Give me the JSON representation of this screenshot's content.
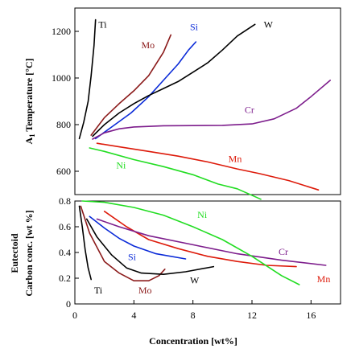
{
  "chart_data": [
    {
      "type": "line",
      "ylabel_main": "A",
      "ylabel_sub": "1",
      "ylabel_rest": " Temperature [°C]",
      "xlim": [
        0,
        18
      ],
      "ylim": [
        500,
        1300
      ],
      "yticks": [
        "600",
        "800",
        "1000",
        "1200"
      ],
      "series": [
        {
          "name": "Ti",
          "color": "#000000",
          "style": "solid",
          "x": [
            0.3,
            0.6,
            0.9,
            1.1,
            1.3,
            1.4
          ],
          "y": [
            740,
            810,
            900,
            1010,
            1140,
            1250
          ]
        },
        {
          "name": "Mo",
          "color": "#8b1a1a",
          "style": "solid",
          "x": [
            1.1,
            2,
            3,
            4,
            5,
            6,
            6.5
          ],
          "y": [
            755,
            830,
            890,
            945,
            1010,
            1110,
            1185
          ]
        },
        {
          "name": "Si",
          "color": "#0a2ad8",
          "style": "solid",
          "x": [
            1.4,
            2.5,
            3.8,
            5,
            6,
            7,
            7.7,
            8.2
          ],
          "y": [
            740,
            790,
            850,
            920,
            990,
            1060,
            1120,
            1155
          ]
        },
        {
          "name": "W",
          "color": "#000000",
          "style": "solid",
          "x": [
            1.2,
            2,
            3,
            4,
            5,
            6,
            7,
            8,
            9,
            10,
            11,
            12.2
          ],
          "y": [
            750,
            800,
            850,
            890,
            925,
            955,
            985,
            1025,
            1065,
            1120,
            1180,
            1230
          ]
        },
        {
          "name": "Cr",
          "color": "#7d1d8c",
          "style": "solid",
          "x": [
            1.2,
            2,
            3,
            4,
            6,
            8,
            10,
            12,
            13.5,
            15,
            16,
            17.3
          ],
          "y": [
            738,
            765,
            782,
            790,
            795,
            796,
            797,
            803,
            825,
            870,
            920,
            990
          ]
        },
        {
          "name": "Mn",
          "color": "#dd1a0a",
          "style": "solid",
          "x": [
            1.5,
            3,
            5,
            7,
            9,
            11,
            12.5,
            14.5,
            16.5
          ],
          "y": [
            720,
            705,
            685,
            665,
            640,
            610,
            590,
            560,
            520
          ]
        },
        {
          "name": "Ni",
          "color": "#22dd22",
          "style": "solid",
          "x": [
            1,
            2,
            4,
            6,
            8,
            9.7,
            11,
            12.6
          ],
          "y": [
            700,
            685,
            650,
            620,
            585,
            545,
            525,
            480
          ]
        }
      ],
      "labels": [
        {
          "text": "Ti",
          "x": 1.6,
          "y": 1215,
          "color": "#000000"
        },
        {
          "text": "Mo",
          "x": 4.5,
          "y": 1128,
          "color": "#8b1a1a"
        },
        {
          "text": "Si",
          "x": 7.8,
          "y": 1205,
          "color": "#0a2ad8"
        },
        {
          "text": "W",
          "x": 12.8,
          "y": 1215,
          "color": "#000000"
        },
        {
          "text": "Cr",
          "x": 11.5,
          "y": 850,
          "color": "#7d1d8c"
        },
        {
          "text": "Mn",
          "x": 10.4,
          "y": 640,
          "color": "#dd1a0a"
        },
        {
          "text": "Ni",
          "x": 2.8,
          "y": 612,
          "color": "#22dd22"
        }
      ]
    },
    {
      "type": "line",
      "ylabel_line1": "Eutectoid",
      "ylabel_line2": "Carbon conc. [wt %]",
      "xlabel": "Concentration [wt%]",
      "xlim": [
        0,
        18
      ],
      "ylim": [
        0,
        0.8
      ],
      "yticks": [
        "0",
        "0.2",
        "0.4",
        "0.6",
        "0.8"
      ],
      "xticks": [
        "0",
        "4",
        "8",
        "12",
        "16"
      ],
      "series": [
        {
          "name": "Ti",
          "color": "#000000",
          "style": "solid",
          "x": [
            0.3,
            0.5,
            0.7,
            0.9,
            1.1
          ],
          "y": [
            0.76,
            0.6,
            0.42,
            0.28,
            0.19
          ]
        },
        {
          "name": "Mo",
          "color": "#8b1a1a",
          "style": "solid",
          "x": [
            0.4,
            1,
            2,
            3,
            4,
            5,
            5.7,
            6.1
          ],
          "y": [
            0.76,
            0.55,
            0.33,
            0.24,
            0.18,
            0.18,
            0.22,
            0.27
          ]
        },
        {
          "name": "W",
          "color": "#000000",
          "style": "solid",
          "x": [
            0.8,
            1.5,
            2.5,
            3.5,
            4.5,
            6,
            7.5,
            9.4
          ],
          "y": [
            0.66,
            0.52,
            0.38,
            0.28,
            0.24,
            0.23,
            0.25,
            0.29
          ]
        },
        {
          "name": "Si",
          "color": "#0a2ad8",
          "style": "solid",
          "x": [
            1,
            2,
            3,
            4,
            5.5,
            7.5
          ],
          "y": [
            0.68,
            0.59,
            0.51,
            0.45,
            0.39,
            0.35
          ]
        },
        {
          "name": "Mn",
          "color": "#dd1a0a",
          "style": "solid",
          "x": [
            2,
            3.5,
            5,
            7,
            9,
            11,
            13,
            15
          ],
          "y": [
            0.72,
            0.6,
            0.5,
            0.43,
            0.37,
            0.33,
            0.3,
            0.29
          ]
        },
        {
          "name": "Cr",
          "color": "#7d1d8c",
          "style": "solid",
          "x": [
            1.5,
            3,
            5,
            8,
            11,
            14,
            17
          ],
          "y": [
            0.66,
            0.6,
            0.53,
            0.46,
            0.39,
            0.34,
            0.3
          ]
        },
        {
          "name": "Ni",
          "color": "#22dd22",
          "style": "solid",
          "x": [
            0.5,
            2,
            4,
            6,
            8,
            10,
            12,
            14,
            15.2
          ],
          "y": [
            0.8,
            0.79,
            0.75,
            0.69,
            0.6,
            0.5,
            0.37,
            0.22,
            0.15
          ]
        }
      ],
      "labels": [
        {
          "text": "Ti",
          "x": 1.3,
          "y": 0.08,
          "color": "#000000"
        },
        {
          "text": "Mo",
          "x": 4.3,
          "y": 0.08,
          "color": "#8b1a1a"
        },
        {
          "text": "W",
          "x": 7.8,
          "y": 0.16,
          "color": "#000000"
        },
        {
          "text": "Si",
          "x": 3.6,
          "y": 0.34,
          "color": "#0a2ad8"
        },
        {
          "text": "Ni",
          "x": 8.3,
          "y": 0.67,
          "color": "#22dd22"
        },
        {
          "text": "Cr",
          "x": 13.8,
          "y": 0.38,
          "color": "#7d1d8c"
        },
        {
          "text": "Mn",
          "x": 16.4,
          "y": 0.17,
          "color": "#dd1a0a"
        }
      ]
    }
  ]
}
